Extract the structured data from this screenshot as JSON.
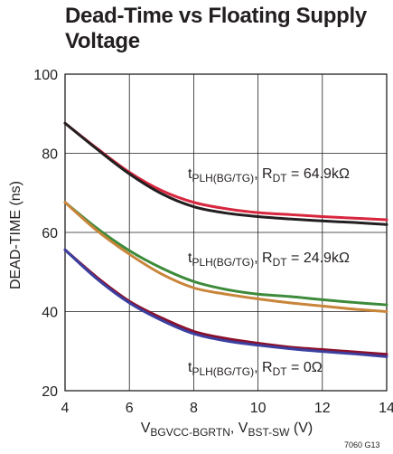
{
  "title": {
    "line1": "Dead-Time vs Floating Supply",
    "line2": "Voltage"
  },
  "figure_id": "7060 G13",
  "chart_data": {
    "type": "line",
    "xlim": [
      4,
      14
    ],
    "ylim": [
      20,
      100
    ],
    "x_ticks": [
      4,
      6,
      8,
      10,
      12,
      14
    ],
    "y_ticks": [
      20,
      40,
      60,
      80,
      100
    ],
    "grid": true,
    "ylabel": "DEAD-TIME (ns)",
    "xlabel": {
      "v1": "V",
      "v1_sub": "BGVCC-BGRTN",
      "sep": ", ",
      "v2": "V",
      "v2_sub": "BST-SW",
      "unit": " (V)"
    },
    "colors": {
      "red": "#d7263d",
      "black": "#231f20",
      "green": "#3c8a3a",
      "orange": "#c9853a",
      "darkred": "#8b0f2a",
      "blue": "#3b3fa0"
    },
    "annotations": [
      {
        "t": "t",
        "t_sub": "PLH(BG/TG)",
        "r": ", R",
        "r_sub": "DT",
        "value": " = 64.9kΩ"
      },
      {
        "t": "t",
        "t_sub": "PLH(BG/TG)",
        "r": ", R",
        "r_sub": "DT",
        "value": " = 24.9kΩ"
      },
      {
        "t": "t",
        "t_sub": "PLH(BG/TG)",
        "r": ", R",
        "r_sub": "DT",
        "value": " = 0Ω"
      }
    ],
    "x": [
      4,
      5,
      6,
      7,
      8,
      9,
      10,
      11,
      12,
      13,
      14
    ],
    "series": [
      {
        "color": "red",
        "values": [
          87.6,
          81.2,
          75.2,
          70.6,
          67.6,
          66.0,
          65.0,
          64.5,
          64.0,
          63.6,
          63.2
        ]
      },
      {
        "color": "black",
        "values": [
          87.6,
          81.0,
          74.8,
          69.8,
          66.5,
          64.9,
          64.0,
          63.4,
          62.9,
          62.5,
          62.0
        ]
      },
      {
        "color": "green",
        "values": [
          67.6,
          61.0,
          55.4,
          51.0,
          47.6,
          45.6,
          44.4,
          43.8,
          43.0,
          42.3,
          41.7
        ]
      },
      {
        "color": "orange",
        "values": [
          67.6,
          60.4,
          54.5,
          49.5,
          46.0,
          44.4,
          43.2,
          42.2,
          41.4,
          40.6,
          40.0
        ]
      },
      {
        "color": "darkred",
        "values": [
          55.6,
          48.6,
          42.6,
          38.4,
          35.0,
          33.2,
          32.0,
          31.0,
          30.4,
          29.8,
          29.2
        ]
      },
      {
        "color": "blue",
        "values": [
          55.6,
          48.2,
          42.2,
          37.8,
          34.4,
          32.6,
          31.5,
          30.6,
          29.9,
          29.3,
          28.6
        ]
      }
    ]
  }
}
